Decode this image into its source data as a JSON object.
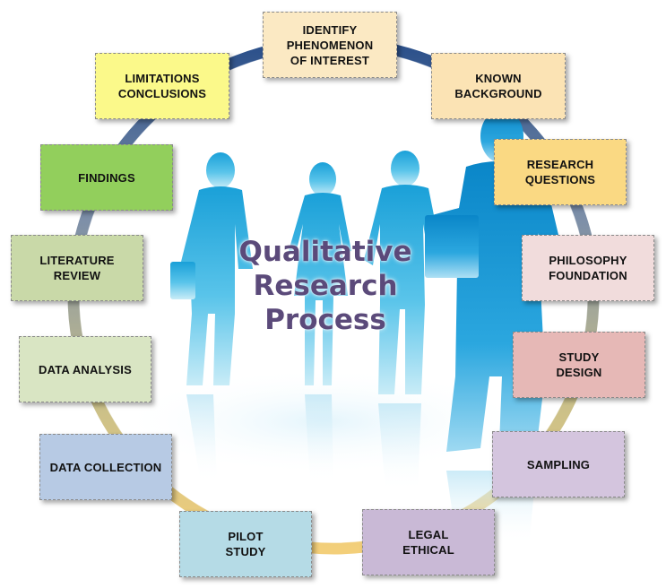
{
  "center_title": [
    "Qualitative",
    "Research",
    "Process"
  ],
  "steps": [
    {
      "id": "identify",
      "label": "IDENTIFY\nPHENOMENON\nOF INTEREST",
      "color": "#fbe9c3"
    },
    {
      "id": "known",
      "label": "KNOWN\nBACKGROUND",
      "color": "#fbe3b4"
    },
    {
      "id": "questions",
      "label": "RESEARCH\nQUESTIONS",
      "color": "#fad983"
    },
    {
      "id": "philosophy",
      "label": "PHILOSOPHY\nFOUNDATION",
      "color": "#f1dcdc"
    },
    {
      "id": "design",
      "label": "STUDY\nDESIGN",
      "color": "#e6b8b6"
    },
    {
      "id": "sampling",
      "label": "SAMPLING",
      "color": "#d4c5de"
    },
    {
      "id": "legal",
      "label": "LEGAL\nETHICAL",
      "color": "#c9b9d6"
    },
    {
      "id": "pilot",
      "label": "PILOT\nSTUDY",
      "color": "#b5dbe6"
    },
    {
      "id": "collection",
      "label": "DATA COLLECTION",
      "color": "#b7cae4"
    },
    {
      "id": "analysis",
      "label": "DATA ANALYSIS",
      "color": "#d9e5c3"
    },
    {
      "id": "literature",
      "label": "LITERATURE\nREVIEW",
      "color": "#c9d9a8"
    },
    {
      "id": "findings",
      "label": "FINDINGS",
      "color": "#92cf5c"
    },
    {
      "id": "limitations",
      "label": "LIMITATIONS\nCONCLUSIONS",
      "color": "#fbf98a"
    }
  ]
}
